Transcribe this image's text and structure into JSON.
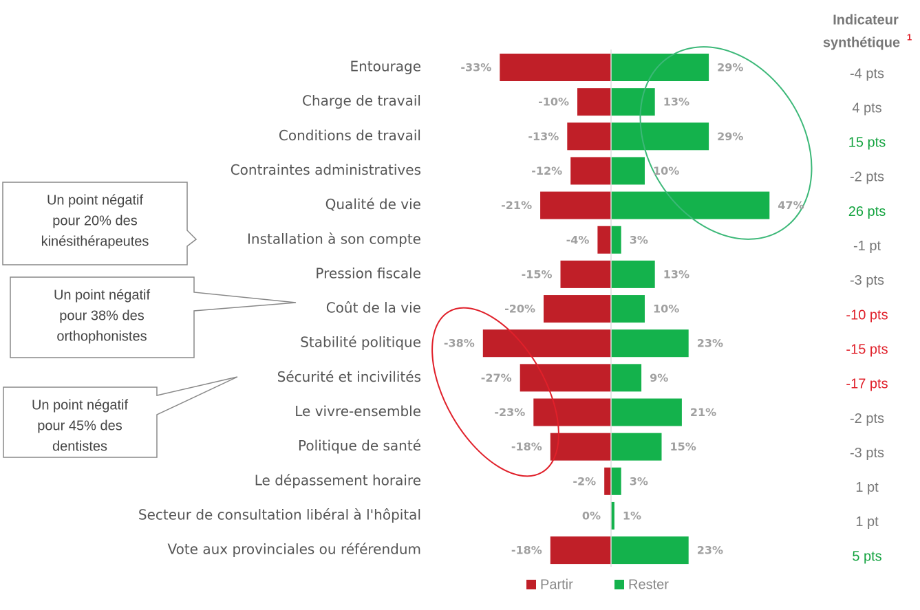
{
  "chart_data": {
    "type": "diverging-bar",
    "categories": [
      "Entourage",
      "Charge de travail",
      "Conditions de travail",
      "Contraintes administratives",
      "Qualité de vie",
      "Installation à son compte",
      "Pression fiscale",
      "Coût de la vie",
      "Stabilité politique",
      "Sécurité et incivilités",
      "Le vivre-ensemble",
      "Politique de santé",
      "Le dépassement horaire",
      "Secteur de consultation libéral à l'hôpital",
      "Vote aux provinciales ou référendum"
    ],
    "series": [
      {
        "name": "Partir",
        "color": "#c01f28",
        "values": [
          -33,
          -10,
          -13,
          -12,
          -21,
          -4,
          -15,
          -20,
          -38,
          -27,
          -23,
          -18,
          -2,
          0,
          -18
        ],
        "value_labels": [
          "-33%",
          "-10%",
          "-13%",
          "-12%",
          "-21%",
          "-4%",
          "-15%",
          "-20%",
          "-38%",
          "-27%",
          "-23%",
          "-18%",
          "-2%",
          "0%",
          "-18%"
        ]
      },
      {
        "name": "Rester",
        "color": "#14b24c",
        "values": [
          29,
          13,
          29,
          10,
          47,
          3,
          13,
          10,
          23,
          9,
          21,
          15,
          3,
          1,
          23
        ],
        "value_labels": [
          "29%",
          "13%",
          "29%",
          "10%",
          "47%",
          "3%",
          "13%",
          "10%",
          "23%",
          "9%",
          "21%",
          "15%",
          "3%",
          "1%",
          "23%"
        ]
      }
    ],
    "legend": "bottom",
    "indicator": {
      "title": [
        "Indicateur",
        "synthétique"
      ],
      "note": "1",
      "values": [
        -4,
        4,
        15,
        -2,
        26,
        -1,
        -3,
        -10,
        -15,
        -17,
        -2,
        -3,
        1,
        1,
        5
      ],
      "value_labels": [
        "-4 pts",
        "4 pts",
        "15 pts",
        "-2 pts",
        "26 pts",
        "-1 pt",
        "-3 pts",
        "-10 pts",
        "-15 pts",
        "-17 pts",
        "-2 pts",
        "-3 pts",
        "1 pt",
        "1 pt",
        "5 pts"
      ],
      "colors": [
        "#777777",
        "#777777",
        "#13a33f",
        "#777777",
        "#13a33f",
        "#777777",
        "#777777",
        "#e0202a",
        "#e0202a",
        "#e0202a",
        "#777777",
        "#777777",
        "#777777",
        "#777777",
        "#13a33f"
      ]
    },
    "annotations": [
      {
        "lines": [
          "Un point négatif",
          "pour 20% des",
          "kinésithérapeutes"
        ]
      },
      {
        "lines": [
          "Un point négatif",
          "pour 38% des",
          "orthophonistes"
        ]
      },
      {
        "lines": [
          "Un point négatif",
          "pour 45% des",
          "dentistes"
        ]
      }
    ]
  }
}
